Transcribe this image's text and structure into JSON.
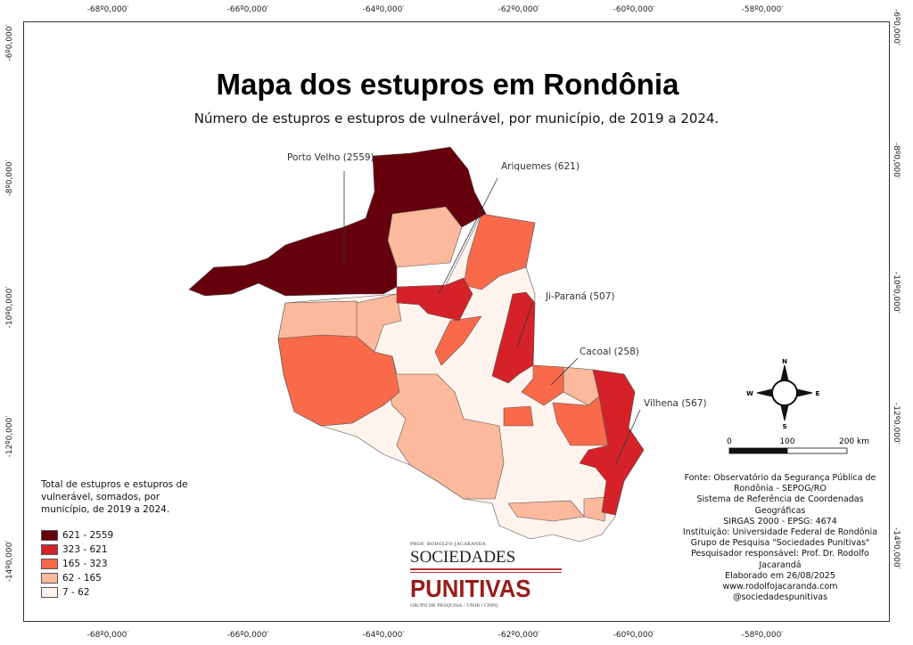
{
  "title": "Mapa dos estupros em Rondônia",
  "subtitle": "Número de estupros e estupros de vulnerável, por município, de 2019 a 2024.",
  "grid": {
    "lon": [
      "-68º0,000′",
      "-66º0,000′",
      "-64º0,000′",
      "-62º0,000′",
      "-60º0,000′",
      "-58º0,000′"
    ],
    "lat": [
      "-6º0,000′",
      "-8º0,000′",
      "-10º0,000′",
      "-12º0,000′",
      "-14º0,000′"
    ]
  },
  "labels": {
    "porto_velho": "Porto Velho (2559)",
    "ariquemes": "Ariquemes (621)",
    "ji_parana": "Ji-Paraná (507)",
    "cacoal": "Cacoal (258)",
    "vilhena": "Vilhena (567)"
  },
  "legend": {
    "title": "Total de estupros e estupros de vulnerável, somados, por município, de 2019 a 2024.",
    "classes": [
      {
        "label": "621 - 2559",
        "color": "#67000d"
      },
      {
        "label": "323 - 621",
        "color": "#d42228"
      },
      {
        "label": "165 - 323",
        "color": "#f96a4a"
      },
      {
        "label": "62 - 165",
        "color": "#fcb99c"
      },
      {
        "label": "7 - 62",
        "color": "#fff3ed"
      }
    ]
  },
  "compass": {
    "n": "N",
    "s": "S",
    "e": "E",
    "w": "W"
  },
  "scale": {
    "t0": "0",
    "t1": "100",
    "t2": "200 km"
  },
  "credits": [
    "Fonte: Observatório da Segurança Pública de",
    "Rondônia - SEPOG/RO",
    "Sistema de Referência de Coordenadas Geográficas",
    "SIRGAS 2000 - EPSG: 4674",
    "Instituição: Universidade Federal de Rondônia",
    "Grupo de Pesquisa \"Sociedades Punitivas\"",
    "Pesquisador responsável: Prof. Dr. Rodolfo Jacarandá",
    "Elaborado em 26/08/2025",
    "www.rodolfojacaranda.com",
    "@sociedadespunitivas"
  ],
  "logo": {
    "line1": "PROF. RODOLFO JACARANDÁ",
    "line2": "SOCIEDADES",
    "line3": "PUNITIVAS",
    "line4": "GRUPO DE PESQUISA – UNIR / CNPQ"
  }
}
